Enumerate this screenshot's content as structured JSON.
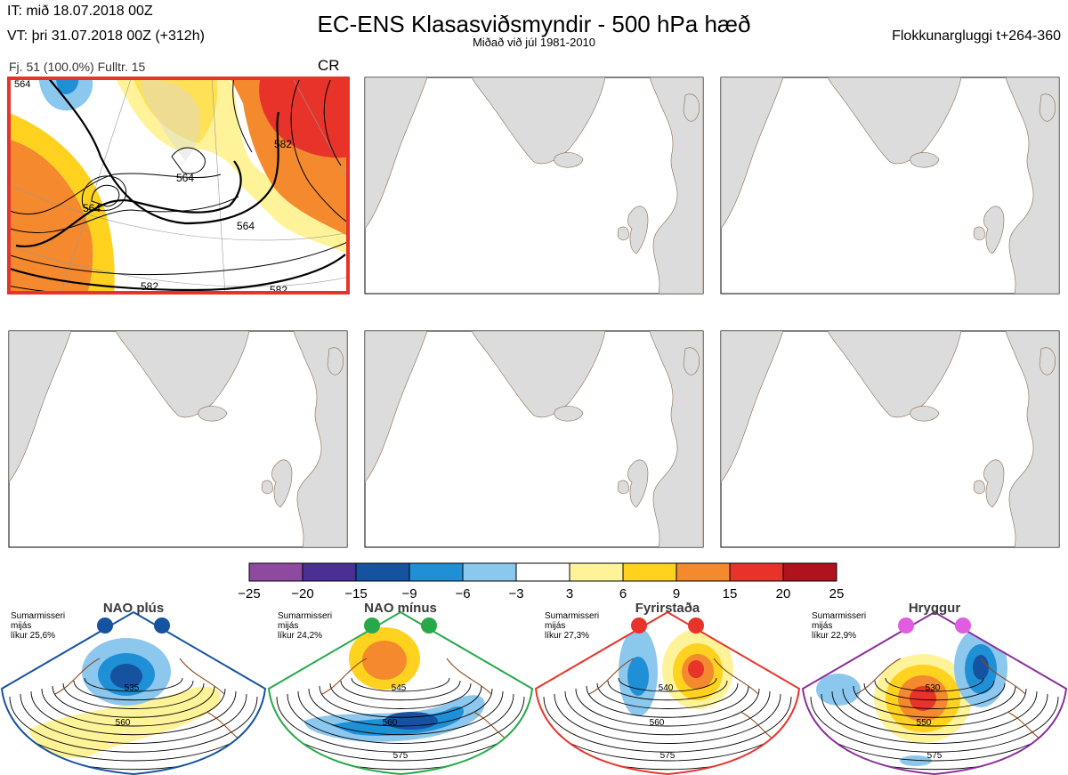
{
  "header": {
    "it": "IT: mið 18.07.2018 00Z",
    "vt": "VT: þri 31.07.2018 00Z  (+312h)",
    "title": "EC-ENS Klasasviðsmyndir - 500 hPa hæð",
    "subtitle": "Miðað við júl 1981-2010",
    "window": "Flokkunargluggi t+264-360"
  },
  "cluster": {
    "info": "Fj. 51 (100.0%)   Fulltr. 15",
    "code": "CR",
    "contour_labels": [
      "564",
      "564",
      "564",
      "582",
      "582",
      "582",
      "564"
    ]
  },
  "colorbar": {
    "ticks": [
      "−25",
      "−20",
      "−15",
      "−9",
      "−6",
      "−3",
      "3",
      "6",
      "9",
      "15",
      "20",
      "25"
    ],
    "colors": [
      "#8e4aa0",
      "#4a2f94",
      "#1553a0",
      "#1f8fd6",
      "#8cc7ee",
      "#ffffff",
      "#fff39a",
      "#ffd21f",
      "#f4892e",
      "#e8332b",
      "#b0131c"
    ]
  },
  "chart_data": {
    "type": "heatmap",
    "title": "EC-ENS Klasasviðsmyndir - 500 hPa hæð",
    "subtitle": "Miðað við júl 1981-2010",
    "colorbar_bounds": [
      -25,
      -20,
      -15,
      -9,
      -6,
      -3,
      3,
      6,
      9,
      15,
      20,
      25
    ],
    "cluster_count_panels": 6,
    "active_cluster": {
      "members": 51,
      "percent": 100.0,
      "representative": 15,
      "regime": "CR"
    },
    "regimes": [
      {
        "name": "NAO plús",
        "season": "Sumarmisseri",
        "line2": "mijás",
        "prob": "líkur 25,6%",
        "contours": [
          "535",
          "560"
        ],
        "color": "#1553a0"
      },
      {
        "name": "NAO mínus",
        "season": "Sumarmisseri",
        "line2": "mijás",
        "prob": "líkur 24,2%",
        "contours": [
          "545",
          "560",
          "575"
        ],
        "color": "#27a84a"
      },
      {
        "name": "Fyrirstaða",
        "season": "Sumarmisseri",
        "line2": "mijás",
        "prob": "líkur 27,3%",
        "contours": [
          "540",
          "560",
          "575"
        ],
        "color": "#e8332b"
      },
      {
        "name": "Hryggur",
        "season": "Sumarmisseri",
        "line2": "mijás",
        "prob": "líkur 22,9%",
        "contours": [
          "530",
          "550",
          "575"
        ],
        "color": "#8b2f9a"
      }
    ]
  }
}
